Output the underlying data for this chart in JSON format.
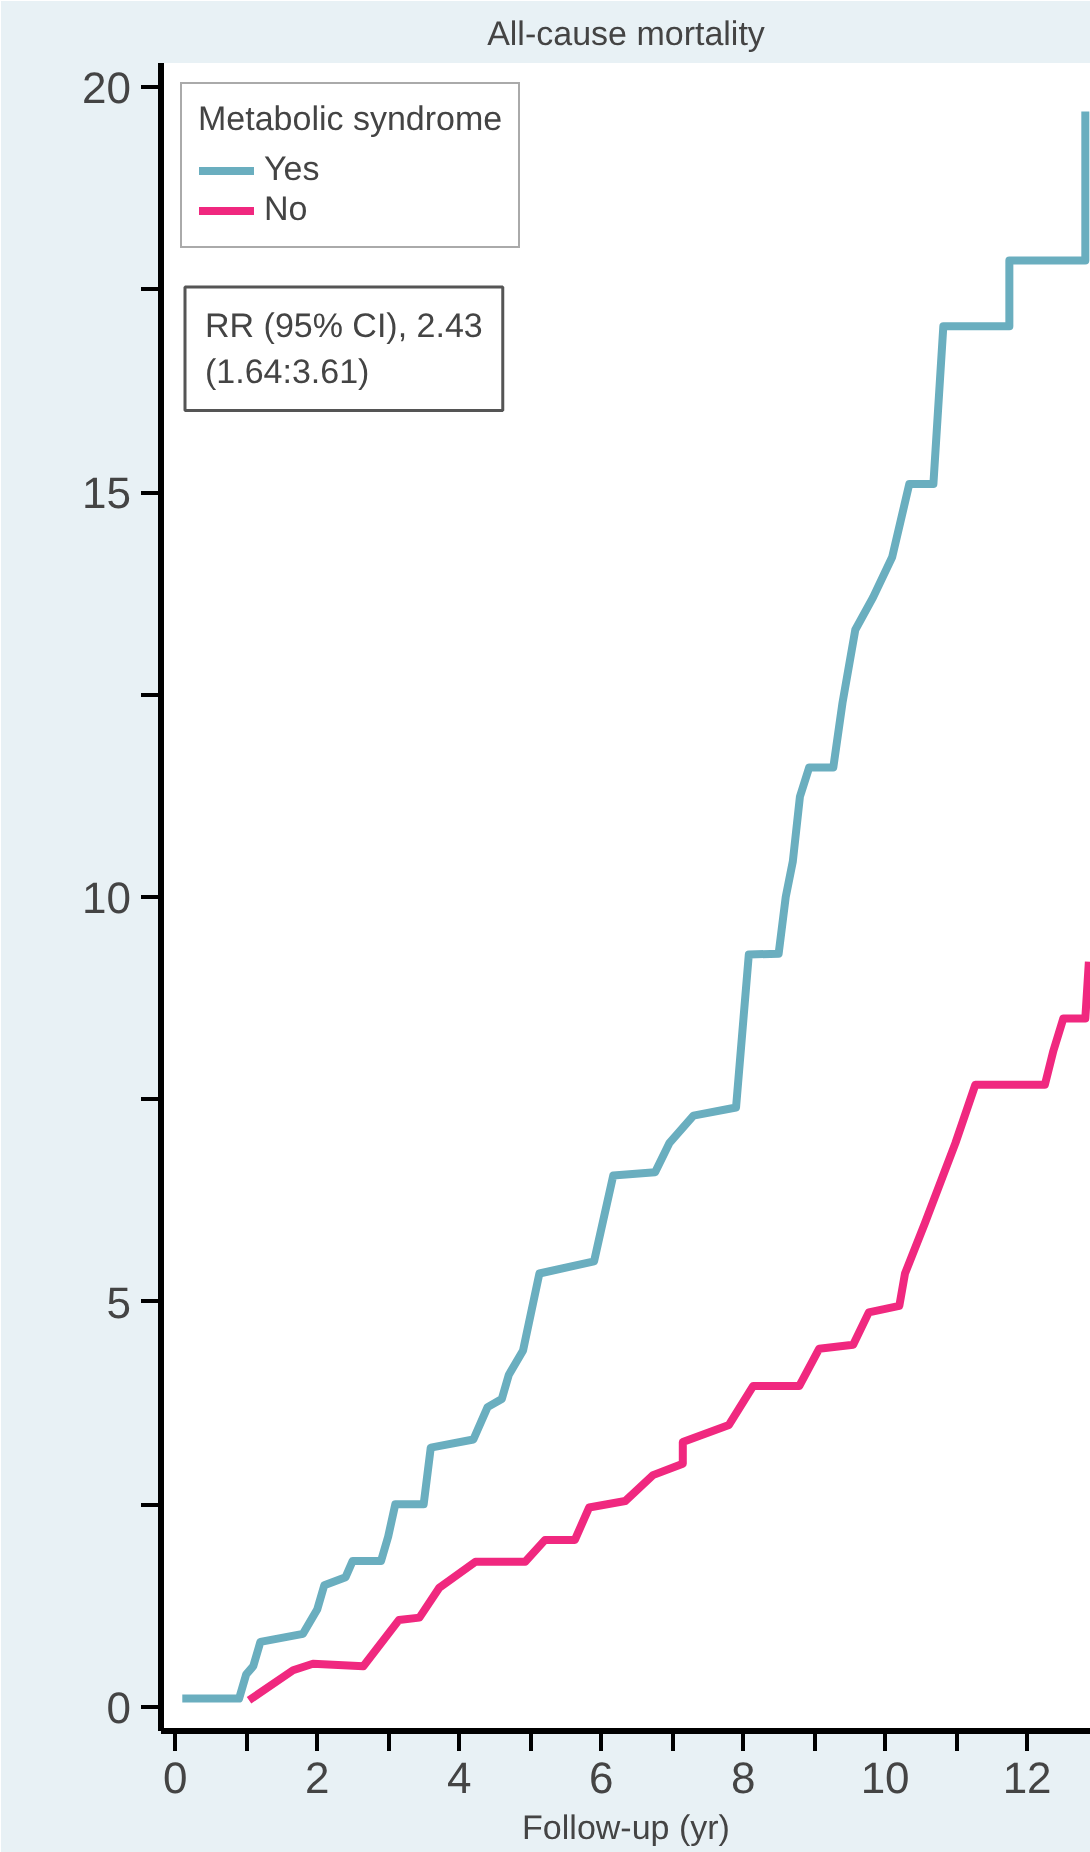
{
  "chart_data": {
    "type": "line",
    "title": "All-cause mortality",
    "xlabel": "Follow-up (yr)",
    "legend_title": "Metabolic syndrome",
    "legend": "top left",
    "grid": false,
    "marker": "none",
    "line_style": "solid",
    "annotations": [
      "RR (95% CI), 2.43\n(1.64:3.61)"
    ],
    "xlim": [
      -0.2,
      12.9
    ],
    "ylim": [
      -0.3,
      20.3
    ],
    "xticks": [
      0,
      {
        "value": 1,
        "label": null
      },
      2,
      {
        "value": 3,
        "label": null
      },
      4,
      {
        "value": 5,
        "label": null
      },
      6,
      {
        "value": 7,
        "label": null
      },
      8,
      {
        "value": 9,
        "label": null
      },
      10,
      {
        "value": 11,
        "label": null
      },
      12
    ],
    "yticks": [
      0,
      {
        "value": 2.5,
        "label": null
      },
      5,
      {
        "value": 7.5,
        "label": null
      },
      10,
      {
        "value": 12.5,
        "label": null
      },
      15,
      {
        "value": 17.5,
        "label": null
      },
      20
    ],
    "series": [
      {
        "name": "Yes",
        "color": "#6aaebf",
        "x": [
          0.1,
          0.9,
          1.0,
          1.1,
          1.2,
          1.8,
          2.0,
          2.1,
          2.4,
          2.5,
          2.9,
          3.0,
          3.1,
          3.5,
          3.6,
          4.2,
          4.4,
          4.6,
          4.7,
          4.9,
          5.13,
          5.9,
          6.17,
          6.76,
          6.96,
          7.3,
          7.9,
          8.08,
          8.5,
          8.6,
          8.7,
          8.8,
          8.93,
          9.27,
          9.4,
          9.58,
          9.83,
          10.1,
          10.34,
          10.68,
          10.82,
          11.75,
          11.75,
          12.82,
          12.82
        ],
        "values": [
          0.1,
          0.1,
          0.4,
          0.5,
          0.8,
          0.9,
          1.2,
          1.5,
          1.6,
          1.8,
          1.8,
          2.1,
          2.5,
          2.5,
          3.2,
          3.3,
          3.7,
          3.8,
          4.1,
          4.4,
          5.35,
          5.5,
          6.56,
          6.6,
          6.96,
          7.3,
          7.4,
          9.29,
          9.3,
          10.0,
          10.44,
          11.24,
          11.6,
          11.6,
          12.4,
          13.3,
          13.7,
          14.2,
          15.1,
          15.1,
          17.05,
          17.05,
          17.86,
          17.86,
          19.7
        ]
      },
      {
        "name": "No",
        "color": "#f0287f",
        "x": [
          1.04,
          1.66,
          1.94,
          2.65,
          3.15,
          3.44,
          3.72,
          4.23,
          4.93,
          5.21,
          5.63,
          5.83,
          6.34,
          6.73,
          7.15,
          7.15,
          7.8,
          8.14,
          8.79,
          9.07,
          9.55,
          9.77,
          10.2,
          10.28,
          10.56,
          10.99,
          11.27,
          12.25,
          12.37,
          12.51,
          12.82,
          12.87
        ],
        "values": [
          0.08,
          0.45,
          0.53,
          0.5,
          1.07,
          1.1,
          1.47,
          1.79,
          1.79,
          2.06,
          2.06,
          2.46,
          2.54,
          2.86,
          3.0,
          3.27,
          3.48,
          3.96,
          3.96,
          4.42,
          4.47,
          4.87,
          4.95,
          5.35,
          5.97,
          6.96,
          7.68,
          7.68,
          8.1,
          8.5,
          8.5,
          9.2
        ]
      }
    ]
  }
}
